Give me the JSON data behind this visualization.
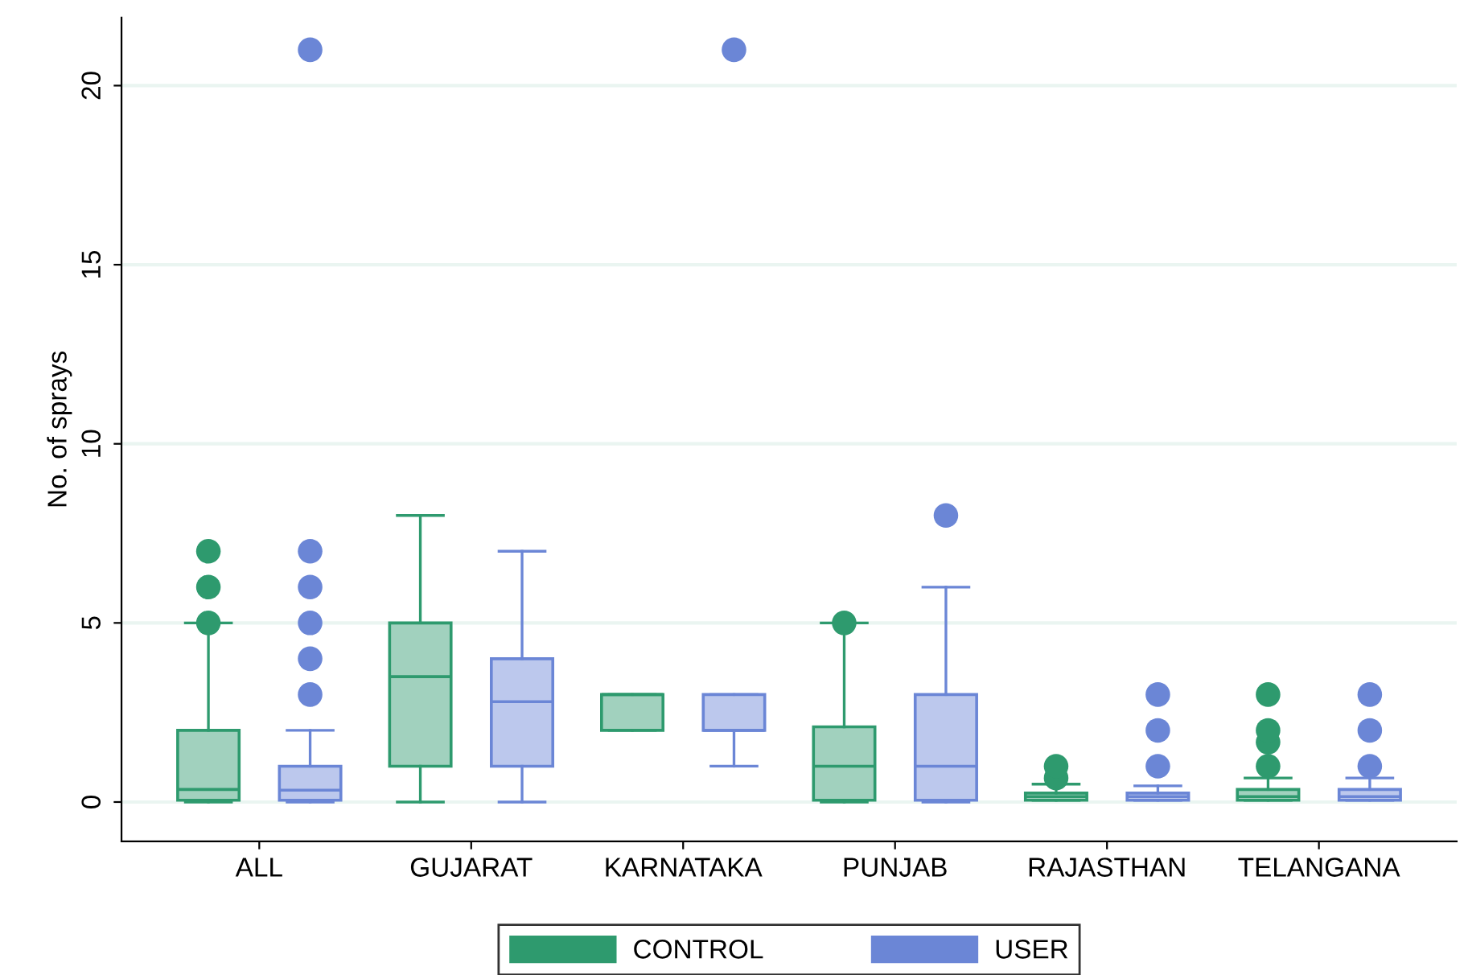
{
  "chart_data": {
    "type": "box",
    "ylabel": "No. of sprays",
    "categories": [
      "ALL",
      "GUJARAT",
      "KARNATAKA",
      "PUNJAB",
      "RAJASTHAN",
      "TELANGANA"
    ],
    "ylim": [
      -1.1,
      21.9
    ],
    "yticks": [
      0,
      5,
      10,
      15,
      20
    ],
    "grid": "y",
    "legend": "bottom",
    "series": [
      {
        "name": "CONTROL",
        "color": "#2e9a6e",
        "boxes": [
          {
            "low": 0,
            "q1": 0.05,
            "median": 0.35,
            "q3": 2,
            "high": 5,
            "outliers": [
              5,
              6,
              7
            ]
          },
          {
            "low": 0,
            "q1": 1,
            "median": 3.5,
            "q3": 5,
            "high": 8
          },
          {
            "low": 2,
            "q1": 2,
            "median": 3,
            "q3": 3,
            "high": 3
          },
          {
            "low": 0,
            "q1": 0.05,
            "median": 1,
            "q3": 2.1,
            "high": 5,
            "outliers": [
              5
            ]
          },
          {
            "low": 0.05,
            "q1": 0.05,
            "median": 0.15,
            "q3": 0.25,
            "high": 0.5,
            "outliers": [
              0.67,
              1
            ]
          },
          {
            "low": 0.05,
            "q1": 0.05,
            "median": 0.15,
            "q3": 0.35,
            "high": 0.67,
            "outliers": [
              1,
              1.67,
              2,
              3
            ]
          }
        ]
      },
      {
        "name": "USER",
        "color": "#6b86d6",
        "boxes": [
          {
            "low": 0,
            "q1": 0.05,
            "median": 0.33,
            "q3": 1,
            "high": 2,
            "outliers": [
              3,
              4,
              5,
              6,
              7,
              21
            ]
          },
          {
            "low": 0,
            "q1": 1,
            "median": 2.8,
            "q3": 4,
            "high": 7
          },
          {
            "low": 1,
            "q1": 2,
            "median": 2,
            "q3": 3,
            "high": 3,
            "outliers": [
              21
            ]
          },
          {
            "low": 0,
            "q1": 0.05,
            "median": 1,
            "q3": 3,
            "high": 6,
            "outliers": [
              8
            ]
          },
          {
            "low": 0.05,
            "q1": 0.05,
            "median": 0.15,
            "q3": 0.25,
            "high": 0.45,
            "outliers": [
              1,
              2,
              3
            ]
          },
          {
            "low": 0.05,
            "q1": 0.05,
            "median": 0.15,
            "q3": 0.35,
            "high": 0.67,
            "outliers": [
              1,
              2,
              3
            ]
          }
        ]
      }
    ]
  }
}
